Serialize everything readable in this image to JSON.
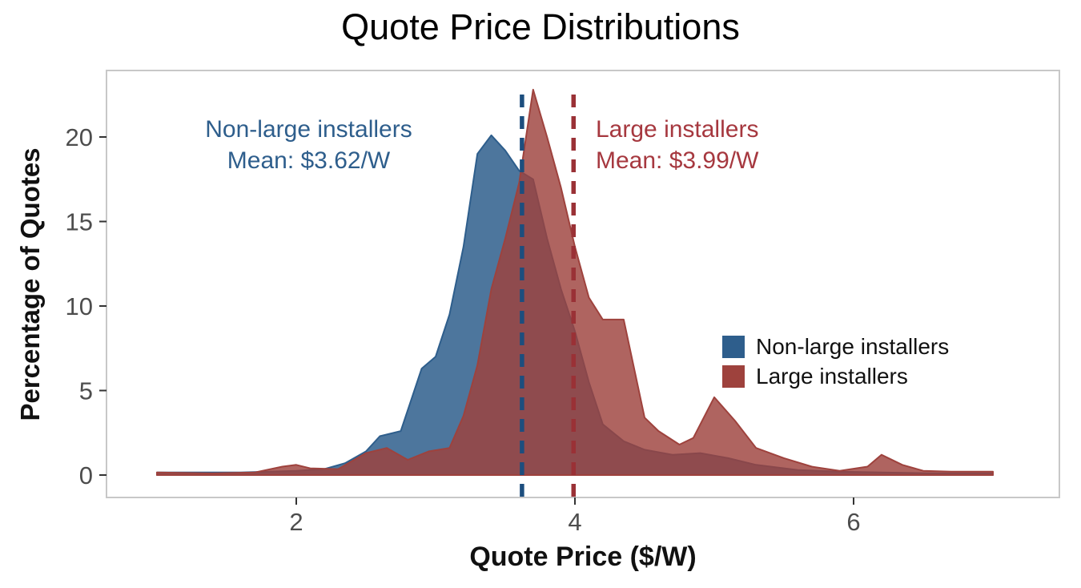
{
  "chart_data": {
    "type": "area",
    "title": "Quote Price Distributions",
    "xlabel": "Quote Price ($/W)",
    "ylabel": "Percentage of Quotes",
    "xlim": [
      1,
      7
    ],
    "ylim": [
      0,
      23
    ],
    "grid": false,
    "legend_position": "right-middle",
    "x_tick_values": [
      2,
      4,
      6
    ],
    "x_tick_labels": [
      "2",
      "4",
      "6"
    ],
    "y_tick_values": [
      0,
      5,
      10,
      15,
      20
    ],
    "y_tick_labels": [
      "0",
      "5",
      "10",
      "15",
      "20"
    ],
    "series": [
      {
        "name": "Non-large installers",
        "color": "#2E5E8C",
        "mean_line_color": "#1D4E7E",
        "fill_opacity": 0.85,
        "mean": 3.62,
        "points": [
          [
            1.0,
            0.15
          ],
          [
            1.3,
            0.15
          ],
          [
            1.6,
            0.15
          ],
          [
            1.8,
            0.2
          ],
          [
            2.0,
            0.25
          ],
          [
            2.2,
            0.35
          ],
          [
            2.35,
            0.7
          ],
          [
            2.5,
            1.4
          ],
          [
            2.6,
            2.3
          ],
          [
            2.75,
            2.6
          ],
          [
            2.9,
            6.3
          ],
          [
            3.0,
            7.0
          ],
          [
            3.1,
            9.5
          ],
          [
            3.2,
            13.5
          ],
          [
            3.3,
            19.0
          ],
          [
            3.4,
            20.1
          ],
          [
            3.5,
            19.2
          ],
          [
            3.6,
            18.0
          ],
          [
            3.7,
            17.5
          ],
          [
            3.8,
            14.0
          ],
          [
            3.9,
            11.0
          ],
          [
            4.0,
            8.5
          ],
          [
            4.1,
            5.5
          ],
          [
            4.2,
            3.0
          ],
          [
            4.35,
            2.0
          ],
          [
            4.5,
            1.5
          ],
          [
            4.7,
            1.2
          ],
          [
            4.9,
            1.3
          ],
          [
            5.1,
            1.0
          ],
          [
            5.3,
            0.6
          ],
          [
            5.6,
            0.3
          ],
          [
            5.9,
            0.2
          ],
          [
            6.2,
            0.15
          ],
          [
            6.6,
            0.1
          ],
          [
            7.0,
            0.1
          ]
        ]
      },
      {
        "name": "Large installers",
        "color": "#9E423D",
        "mean_line_color": "#9A3136",
        "fill_opacity": 0.82,
        "mean": 3.99,
        "points": [
          [
            1.0,
            0.15
          ],
          [
            1.4,
            0.1
          ],
          [
            1.7,
            0.15
          ],
          [
            1.9,
            0.5
          ],
          [
            2.0,
            0.6
          ],
          [
            2.1,
            0.4
          ],
          [
            2.3,
            0.35
          ],
          [
            2.5,
            1.3
          ],
          [
            2.65,
            1.6
          ],
          [
            2.8,
            0.9
          ],
          [
            2.95,
            1.4
          ],
          [
            3.1,
            1.6
          ],
          [
            3.2,
            3.5
          ],
          [
            3.3,
            6.5
          ],
          [
            3.4,
            11.0
          ],
          [
            3.5,
            14.0
          ],
          [
            3.6,
            17.3
          ],
          [
            3.7,
            22.8
          ],
          [
            3.8,
            20.0
          ],
          [
            3.9,
            17.0
          ],
          [
            4.0,
            13.5
          ],
          [
            4.1,
            10.5
          ],
          [
            4.2,
            9.2
          ],
          [
            4.35,
            9.2
          ],
          [
            4.5,
            3.4
          ],
          [
            4.6,
            2.6
          ],
          [
            4.75,
            1.8
          ],
          [
            4.85,
            2.2
          ],
          [
            5.0,
            4.6
          ],
          [
            5.15,
            3.2
          ],
          [
            5.3,
            1.6
          ],
          [
            5.5,
            1.0
          ],
          [
            5.7,
            0.5
          ],
          [
            5.9,
            0.25
          ],
          [
            6.1,
            0.5
          ],
          [
            6.2,
            1.2
          ],
          [
            6.35,
            0.6
          ],
          [
            6.5,
            0.25
          ],
          [
            6.7,
            0.2
          ],
          [
            7.0,
            0.2
          ]
        ]
      }
    ],
    "annotations": [
      {
        "lines": [
          "Non-large installers",
          "Mean: $3.62/W"
        ],
        "color": "#2E5E8C"
      },
      {
        "lines": [
          "Large installers",
          "Mean: $3.99/W"
        ],
        "color": "#A6383F"
      }
    ],
    "tick_label_color": "#4d4d4d",
    "frame_color": "#c8c8c8"
  }
}
